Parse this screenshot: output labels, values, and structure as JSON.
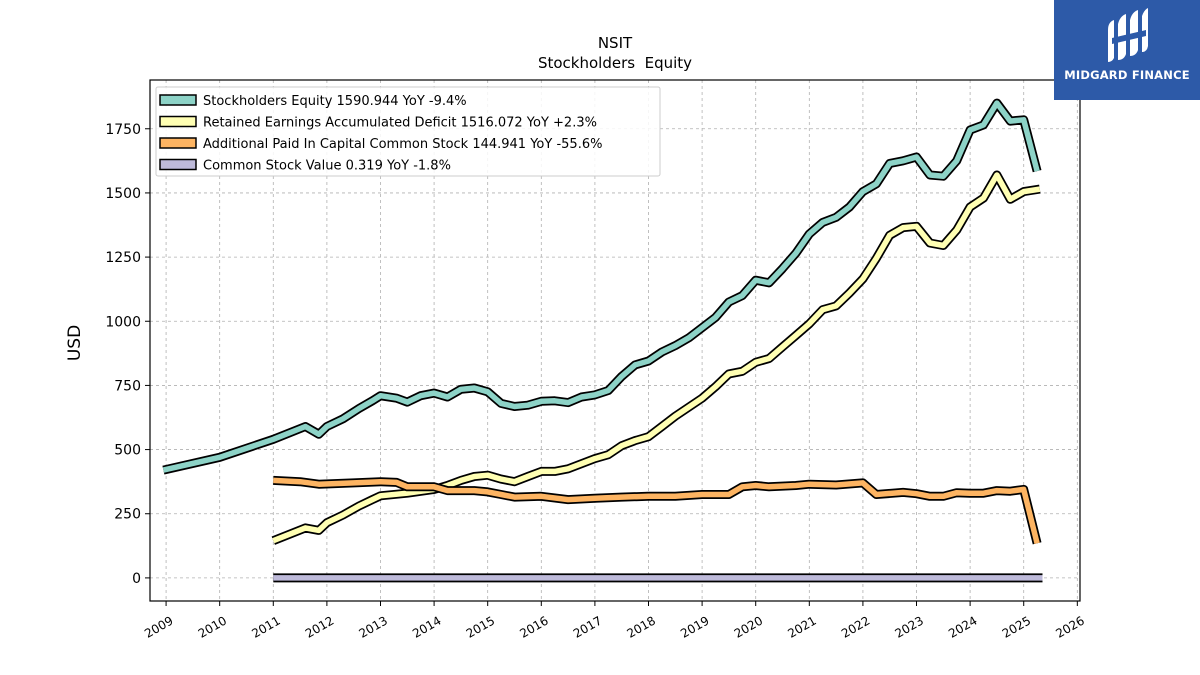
{
  "brand": {
    "name": "MIDGARD FINANCE",
    "color": "#2d5aa8"
  },
  "chart_data": {
    "type": "line",
    "title": "NSIT",
    "subtitle": "Stockholders  Equity",
    "ylabel": "USD",
    "xlim": [
      2008.7,
      2026.05
    ],
    "ylim": [
      -90,
      1940
    ],
    "yticks": [
      0,
      250,
      500,
      750,
      1000,
      1250,
      1500,
      1750
    ],
    "xticks": [
      "2009",
      "2010",
      "2011",
      "2012",
      "2013",
      "2014",
      "2015",
      "2016",
      "2017",
      "2018",
      "2019",
      "2020",
      "2021",
      "2022",
      "2023",
      "2024",
      "2025",
      "2026"
    ],
    "grid": true,
    "legend_position": "top-left",
    "series": [
      {
        "name": "Stockholders Equity  1590.944 YoY -9.4%",
        "color": "#8dd3c7",
        "points": [
          [
            2008.95,
            420
          ],
          [
            2010.0,
            470
          ],
          [
            2011.0,
            540
          ],
          [
            2011.6,
            590
          ],
          [
            2011.85,
            560
          ],
          [
            2012.0,
            590
          ],
          [
            2012.3,
            620
          ],
          [
            2012.6,
            660
          ],
          [
            2012.85,
            690
          ],
          [
            2013.0,
            710
          ],
          [
            2013.3,
            700
          ],
          [
            2013.5,
            685
          ],
          [
            2013.75,
            710
          ],
          [
            2014.0,
            720
          ],
          [
            2014.25,
            705
          ],
          [
            2014.5,
            735
          ],
          [
            2014.75,
            740
          ],
          [
            2015.0,
            725
          ],
          [
            2015.25,
            680
          ],
          [
            2015.5,
            668
          ],
          [
            2015.75,
            673
          ],
          [
            2016.0,
            688
          ],
          [
            2016.25,
            690
          ],
          [
            2016.5,
            683
          ],
          [
            2016.75,
            705
          ],
          [
            2017.0,
            713
          ],
          [
            2017.25,
            730
          ],
          [
            2017.5,
            785
          ],
          [
            2017.75,
            830
          ],
          [
            2018.0,
            845
          ],
          [
            2018.25,
            880
          ],
          [
            2018.5,
            905
          ],
          [
            2018.75,
            935
          ],
          [
            2019.0,
            975
          ],
          [
            2019.25,
            1015
          ],
          [
            2019.5,
            1075
          ],
          [
            2019.75,
            1100
          ],
          [
            2020.0,
            1160
          ],
          [
            2020.25,
            1150
          ],
          [
            2020.5,
            1205
          ],
          [
            2020.75,
            1265
          ],
          [
            2021.0,
            1340
          ],
          [
            2021.25,
            1385
          ],
          [
            2021.5,
            1405
          ],
          [
            2021.75,
            1445
          ],
          [
            2022.0,
            1505
          ],
          [
            2022.25,
            1535
          ],
          [
            2022.5,
            1615
          ],
          [
            2022.75,
            1625
          ],
          [
            2023.0,
            1640
          ],
          [
            2023.25,
            1570
          ],
          [
            2023.5,
            1565
          ],
          [
            2023.75,
            1625
          ],
          [
            2024.0,
            1745
          ],
          [
            2024.25,
            1765
          ],
          [
            2024.5,
            1850
          ],
          [
            2024.75,
            1780
          ],
          [
            2025.0,
            1785
          ],
          [
            2025.25,
            1585
          ]
        ]
      },
      {
        "name": "Retained Earnings Accumulated Deficit  1516.072 YoY +2.3%",
        "color": "#ffffb3",
        "points": [
          [
            2011.0,
            145
          ],
          [
            2011.6,
            195
          ],
          [
            2011.85,
            185
          ],
          [
            2012.0,
            215
          ],
          [
            2012.3,
            245
          ],
          [
            2012.6,
            280
          ],
          [
            2012.85,
            305
          ],
          [
            2013.0,
            320
          ],
          [
            2013.5,
            330
          ],
          [
            2014.0,
            345
          ],
          [
            2014.25,
            360
          ],
          [
            2014.5,
            380
          ],
          [
            2014.75,
            395
          ],
          [
            2015.0,
            400
          ],
          [
            2015.25,
            385
          ],
          [
            2015.5,
            375
          ],
          [
            2015.75,
            395
          ],
          [
            2016.0,
            415
          ],
          [
            2016.25,
            415
          ],
          [
            2016.5,
            425
          ],
          [
            2016.75,
            445
          ],
          [
            2017.0,
            465
          ],
          [
            2017.25,
            480
          ],
          [
            2017.5,
            515
          ],
          [
            2017.75,
            535
          ],
          [
            2018.0,
            550
          ],
          [
            2018.25,
            590
          ],
          [
            2018.5,
            630
          ],
          [
            2018.75,
            665
          ],
          [
            2019.0,
            700
          ],
          [
            2019.25,
            745
          ],
          [
            2019.5,
            795
          ],
          [
            2019.75,
            805
          ],
          [
            2020.0,
            840
          ],
          [
            2020.25,
            855
          ],
          [
            2020.5,
            900
          ],
          [
            2020.75,
            945
          ],
          [
            2021.0,
            990
          ],
          [
            2021.25,
            1045
          ],
          [
            2021.5,
            1060
          ],
          [
            2021.75,
            1110
          ],
          [
            2022.0,
            1165
          ],
          [
            2022.25,
            1245
          ],
          [
            2022.5,
            1335
          ],
          [
            2022.75,
            1365
          ],
          [
            2023.0,
            1370
          ],
          [
            2023.25,
            1305
          ],
          [
            2023.5,
            1295
          ],
          [
            2023.75,
            1355
          ],
          [
            2024.0,
            1445
          ],
          [
            2024.25,
            1480
          ],
          [
            2024.5,
            1570
          ],
          [
            2024.75,
            1475
          ],
          [
            2025.0,
            1505
          ],
          [
            2025.3,
            1515
          ]
        ]
      },
      {
        "name": "Additional Paid In Capital Common Stock  144.941 YoY -55.6%",
        "color": "#fdb462",
        "points": [
          [
            2011.0,
            380
          ],
          [
            2011.5,
            375
          ],
          [
            2011.85,
            365
          ],
          [
            2012.5,
            370
          ],
          [
            2013.0,
            375
          ],
          [
            2013.3,
            372
          ],
          [
            2013.5,
            355
          ],
          [
            2014.0,
            355
          ],
          [
            2014.25,
            340
          ],
          [
            2014.75,
            340
          ],
          [
            2015.0,
            335
          ],
          [
            2015.25,
            325
          ],
          [
            2015.5,
            315
          ],
          [
            2016.0,
            318
          ],
          [
            2016.5,
            305
          ],
          [
            2017.0,
            310
          ],
          [
            2017.5,
            315
          ],
          [
            2018.0,
            318
          ],
          [
            2018.5,
            318
          ],
          [
            2019.0,
            325
          ],
          [
            2019.5,
            325
          ],
          [
            2019.75,
            355
          ],
          [
            2020.0,
            360
          ],
          [
            2020.25,
            355
          ],
          [
            2020.75,
            360
          ],
          [
            2021.0,
            365
          ],
          [
            2021.5,
            362
          ],
          [
            2022.0,
            370
          ],
          [
            2022.25,
            325
          ],
          [
            2022.75,
            333
          ],
          [
            2023.0,
            328
          ],
          [
            2023.25,
            318
          ],
          [
            2023.5,
            318
          ],
          [
            2023.75,
            332
          ],
          [
            2024.0,
            330
          ],
          [
            2024.25,
            330
          ],
          [
            2024.5,
            340
          ],
          [
            2024.75,
            338
          ],
          [
            2025.0,
            345
          ],
          [
            2025.25,
            135
          ]
        ]
      },
      {
        "name": "Common Stock Value  0.319 YoY -1.8%",
        "color": "#bebada",
        "points": [
          [
            2011.0,
            0
          ],
          [
            2025.35,
            0
          ]
        ]
      }
    ]
  }
}
